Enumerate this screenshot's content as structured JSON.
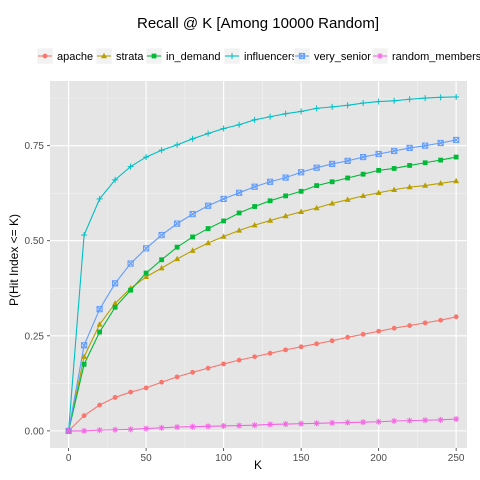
{
  "chart_data": {
    "type": "line",
    "title": "Recall @ K [Among 10000 Random]",
    "xlabel": "K",
    "ylabel": "P(Hit Index <= K)",
    "xlim": [
      -12,
      257
    ],
    "ylim": [
      -0.045,
      0.92
    ],
    "xticks": [
      0,
      50,
      100,
      150,
      200,
      250
    ],
    "xtick_labels": [
      "0",
      "50",
      "100",
      "150",
      "200",
      "250"
    ],
    "yticks": [
      0,
      0.25,
      0.5,
      0.75
    ],
    "ytick_labels": [
      "0.00",
      "0.25",
      "0.50",
      "0.75"
    ],
    "grid": true,
    "legend_position": "top",
    "x": [
      0,
      10,
      20,
      30,
      40,
      50,
      60,
      70,
      80,
      90,
      100,
      110,
      120,
      130,
      140,
      150,
      160,
      170,
      180,
      190,
      200,
      210,
      220,
      230,
      240,
      250
    ],
    "series": [
      {
        "name": "apache",
        "color": "#f8766d",
        "marker": "circle",
        "values": [
          0,
          0.04,
          0.068,
          0.088,
          0.102,
          0.113,
          0.128,
          0.142,
          0.154,
          0.165,
          0.176,
          0.186,
          0.195,
          0.204,
          0.213,
          0.221,
          0.229,
          0.237,
          0.246,
          0.254,
          0.262,
          0.27,
          0.277,
          0.284,
          0.291,
          0.3
        ]
      },
      {
        "name": "strata",
        "color": "#b79f00",
        "marker": "triangle",
        "values": [
          0,
          0.195,
          0.28,
          0.335,
          0.375,
          0.405,
          0.428,
          0.452,
          0.474,
          0.494,
          0.511,
          0.527,
          0.541,
          0.553,
          0.565,
          0.576,
          0.586,
          0.598,
          0.608,
          0.618,
          0.626,
          0.634,
          0.641,
          0.645,
          0.651,
          0.657
        ]
      },
      {
        "name": "in_demand",
        "color": "#00ba38",
        "marker": "square",
        "values": [
          0,
          0.175,
          0.26,
          0.325,
          0.37,
          0.415,
          0.45,
          0.483,
          0.51,
          0.532,
          0.552,
          0.573,
          0.59,
          0.605,
          0.618,
          0.63,
          0.645,
          0.655,
          0.665,
          0.675,
          0.685,
          0.69,
          0.698,
          0.705,
          0.712,
          0.72
        ]
      },
      {
        "name": "influencers",
        "color": "#00bfc4",
        "marker": "plus",
        "values": [
          0,
          0.515,
          0.61,
          0.66,
          0.695,
          0.72,
          0.738,
          0.752,
          0.768,
          0.782,
          0.795,
          0.805,
          0.818,
          0.826,
          0.834,
          0.84,
          0.848,
          0.852,
          0.856,
          0.862,
          0.866,
          0.868,
          0.872,
          0.875,
          0.877,
          0.878
        ]
      },
      {
        "name": "very_senior",
        "color": "#619cff",
        "marker": "squarecross",
        "values": [
          0,
          0.225,
          0.32,
          0.388,
          0.44,
          0.48,
          0.515,
          0.545,
          0.57,
          0.592,
          0.61,
          0.626,
          0.642,
          0.655,
          0.666,
          0.68,
          0.692,
          0.702,
          0.71,
          0.72,
          0.728,
          0.736,
          0.744,
          0.75,
          0.757,
          0.765
        ]
      },
      {
        "name": "random_members",
        "color": "#f564e3",
        "marker": "asterisk",
        "values": [
          0,
          0.0,
          0.002,
          0.003,
          0.004,
          0.006,
          0.008,
          0.01,
          0.011,
          0.012,
          0.013,
          0.014,
          0.015,
          0.017,
          0.018,
          0.019,
          0.02,
          0.021,
          0.022,
          0.023,
          0.024,
          0.026,
          0.027,
          0.028,
          0.029,
          0.031
        ]
      }
    ]
  }
}
